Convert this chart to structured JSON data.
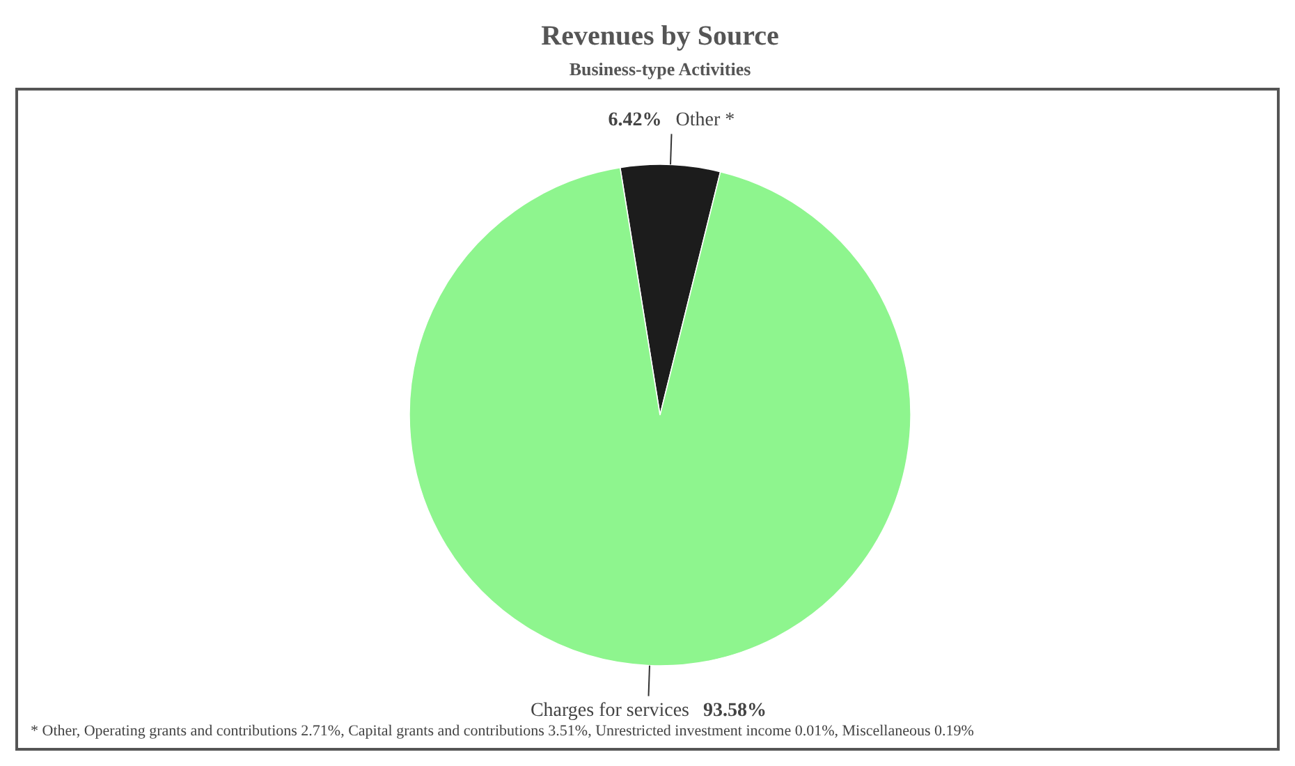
{
  "chart_data": {
    "type": "pie",
    "title": "Revenues by Source",
    "subtitle": "Business-type Activities",
    "categories": [
      "Other *",
      "Charges for services"
    ],
    "values": [
      6.42,
      93.58
    ],
    "colors": [
      "#1c1c1c",
      "#8ef58e"
    ],
    "value_labels": [
      "6.42%",
      "93.58%"
    ],
    "annotations": [
      "* Other, Operating grants and contributions 2.71%, Capital grants and contributions 3.51%, Unrestricted investment income 0.01%, Miscellaneous 0.19%"
    ]
  }
}
